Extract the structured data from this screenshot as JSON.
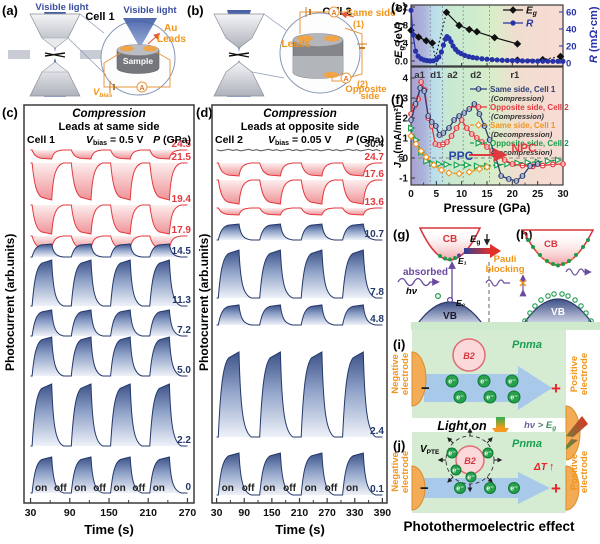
{
  "colors": {
    "red": "#e2393f",
    "blue": "#24386b",
    "orange": "#f0941c",
    "green": "#15a04c",
    "navy": "#2741a6",
    "purple": "#6a4a9e",
    "zone_purple": "#a8a0d0",
    "zone_blue": "#badcec",
    "zone_green": "#cfeccc",
    "zone_pink": "#f8dcd4",
    "electrode_orange": "#f3ab55",
    "arrow_blue": "#a8c9e9",
    "bg_green": "#d5ecd3",
    "b2_pink": "#fbd9da"
  },
  "panels": {
    "a": {
      "label": "(a)",
      "light1": "Visible light",
      "light2": "Visible light",
      "cell": "Cell 1",
      "au1": "Au",
      "au2": "Leads",
      "sample": "Sample",
      "v": "V",
      "vsub": "bias"
    },
    "b": {
      "label": "(b)",
      "cell": "Cell 2",
      "leads": "Leads",
      "same1": "Same side",
      "same_num": "(1)",
      "opp1": "Opposite",
      "opp2": "side",
      "opp_num": "(2)"
    },
    "g": {
      "label": "(g)",
      "cb": "CB",
      "vb": "VB",
      "absorbed": "absorbed",
      "hv": "hν",
      "e1": "E₁",
      "e0": "E₀"
    },
    "gh_mid": {
      "eg": "E",
      "egsub": "g"
    },
    "h": {
      "label": "(h)",
      "cb": "CB",
      "vb": "VB",
      "pauli1": "Pauli",
      "pauli2": "blocking"
    },
    "i": {
      "label": "(i)",
      "pnma": "Pnma",
      "b2": "B2",
      "minus": "−",
      "plus": "+",
      "electron": "e⁻",
      "neg1": "Negative",
      "neg2": "electrode",
      "pos1": "Positive",
      "pos2": "electrode"
    },
    "light": {
      "lighton": "Light on",
      "hv": "hν > E",
      "hvsub": "g"
    },
    "j": {
      "label": "(j)",
      "v": "V",
      "vsub": "PTE",
      "pnma": "Pnma",
      "b2": "B2",
      "dt": "ΔT",
      "up": "↑",
      "minus": "−",
      "plus": "+",
      "electron": "e⁻",
      "neg1": "Negative",
      "neg2": "electrode",
      "pos1": "Positive",
      "pos2": "electrode"
    },
    "caption": "Photothermoelectric effect"
  },
  "chart_data": [
    {
      "id": "c",
      "type": "pulse-train",
      "panel_label": "(c)",
      "title": "Compression",
      "subtitle": "Leads at same side",
      "cell": "Cell 1",
      "vbias_base": "V",
      "vbias_sub": "bias",
      "vbias_rest": " = 0.5 V",
      "pressure_header_i": "P",
      "pressure_header_rest": " (GPa)",
      "ylabel": "Photocurrent (arb.units)",
      "xlabel": "Time (s)",
      "xticks": [
        30,
        90,
        150,
        210,
        270
      ],
      "xminor": [
        60,
        120,
        180,
        240
      ],
      "onoff": [
        "on",
        "off",
        "on",
        "off",
        "on",
        "off",
        "on"
      ],
      "traces": [
        {
          "pressure": "24.5",
          "color": "red",
          "baseline": 150,
          "amp": 9
        },
        {
          "pressure": "21.5",
          "color": "red",
          "baseline": 163,
          "amp": 37
        },
        {
          "pressure": "19.4",
          "color": "red",
          "baseline": 205,
          "amp": 29
        },
        {
          "pressure": "17.9",
          "color": "red",
          "baseline": 236,
          "amp": 13
        },
        {
          "pressure": "14.5",
          "color": "blue",
          "baseline": 257,
          "amp": 13
        },
        {
          "pressure": "11.3",
          "color": "blue",
          "baseline": 306,
          "amp": 46
        },
        {
          "pressure": "7.2",
          "color": "blue",
          "baseline": 336,
          "amp": 26
        },
        {
          "pressure": "5.0",
          "color": "blue",
          "baseline": 376,
          "amp": 39
        },
        {
          "pressure": "2.2",
          "color": "blue",
          "baseline": 446,
          "amp": 62
        },
        {
          "pressure": "0",
          "color": "blue",
          "baseline": 493,
          "amp": 36
        }
      ]
    },
    {
      "id": "d",
      "type": "pulse-train",
      "panel_label": "(d)",
      "title": "Compression",
      "subtitle": "Leads at opposite side",
      "cell": "Cell 2",
      "vbias_base": "V",
      "vbias_sub": "bias",
      "vbias_rest": " = 0.05 V",
      "pressure_header_i": "P",
      "pressure_header_rest": " (GPa)",
      "ylabel": "Photocurrent (arb.units)",
      "xlabel": "Time (s)",
      "xticks": [
        30,
        90,
        150,
        210,
        270,
        330,
        390
      ],
      "xminor": [
        60,
        120,
        180,
        240,
        300,
        360
      ],
      "onoff": [
        "on",
        "off",
        "on",
        "off",
        "on",
        "off",
        "on"
      ],
      "traces": [
        {
          "pressure": "30.4",
          "color": "dark",
          "baseline": 150,
          "amp": 2
        },
        {
          "pressure": "24.7",
          "color": "red",
          "baseline": 163,
          "amp": 13
        },
        {
          "pressure": "17.6",
          "color": "red",
          "baseline": 180,
          "amp": 24
        },
        {
          "pressure": "13.6",
          "color": "red",
          "baseline": 208,
          "amp": 7
        },
        {
          "pressure": "10.7",
          "color": "blue",
          "baseline": 240,
          "amp": 16
        },
        {
          "pressure": "7.8",
          "color": "blue",
          "baseline": 298,
          "amp": 48
        },
        {
          "pressure": "4.8",
          "color": "blue",
          "baseline": 325,
          "amp": 20
        },
        {
          "pressure": "2.4",
          "color": "blue",
          "baseline": 437,
          "amp": 85
        },
        {
          "pressure": "0.1",
          "color": "blue",
          "baseline": 495,
          "amp": 42
        }
      ]
    },
    {
      "id": "e",
      "type": "line",
      "panel_label": "(e)",
      "xlim": [
        0,
        30
      ],
      "left_axis": {
        "label_base": "E",
        "label_sub": "g",
        "label_rest": " (eV)",
        "ticks": [
          "0.0",
          "0.4",
          "0.8",
          "1.2"
        ],
        "tick_vals": [
          0,
          0.4,
          0.8,
          1.2
        ],
        "lim": [
          -0.11,
          1.25
        ]
      },
      "right_axis": {
        "label_italic": "R",
        "label_rest": " (mΩ·cm)",
        "ticks": [
          "0",
          "20",
          "40",
          "60"
        ],
        "tick_vals": [
          0,
          20,
          40,
          60
        ],
        "lim": [
          0,
          66
        ]
      },
      "legend": [
        {
          "base": "E",
          "sub": "g",
          "color": "#111111",
          "marker": "diamond"
        },
        {
          "base": "R",
          "sub": "",
          "color": "#2733a8",
          "marker": "circle"
        }
      ],
      "series": [
        {
          "name": "Eg",
          "axis": "left",
          "marker": "diamond",
          "color": "#111111",
          "style": "solid",
          "points": [
            [
              0,
              0.68
            ],
            [
              1.5,
              0.53
            ],
            [
              3,
              0.45
            ],
            [
              4.2,
              0.4
            ]
          ]
        },
        {
          "name": "Eg-transition",
          "axis": "left",
          "marker": "none",
          "color": "#111111",
          "style": "dotted",
          "points": [
            [
              4.2,
              0.4
            ],
            [
              4.8,
              0.06
            ],
            [
              7,
              1.08
            ]
          ]
        },
        {
          "name": "Eg-high",
          "axis": "left",
          "marker": "diamond",
          "color": "#111111",
          "style": "solid",
          "points": [
            [
              7,
              1.08
            ],
            [
              9.5,
              0.79
            ],
            [
              11.5,
              0.7
            ],
            [
              13,
              0.65
            ],
            [
              16.5,
              0.52
            ],
            [
              21,
              0.38
            ]
          ]
        },
        {
          "name": "Eg-metallic",
          "axis": "left",
          "marker": "diamond",
          "color": "#111111",
          "style": "dotted",
          "points": [
            [
              21,
              0.02
            ],
            [
              26,
              0.03
            ],
            [
              29.5,
              0.1
            ]
          ]
        },
        {
          "name": "R",
          "axis": "right",
          "marker": "circle",
          "color": "#2733a8",
          "style": "solid",
          "points": [
            [
              0,
              62
            ],
            [
              0.4,
              33
            ],
            [
              0.9,
              14
            ],
            [
              1.4,
              8
            ],
            [
              2,
              5
            ],
            [
              2.6,
              3.5
            ],
            [
              3.2,
              2.8
            ],
            [
              3.8,
              2.4
            ],
            [
              4.4,
              2.6
            ],
            [
              5,
              4
            ],
            [
              5.5,
              7
            ],
            [
              6,
              13
            ],
            [
              6.4,
              21
            ],
            [
              6.8,
              28
            ],
            [
              7.1,
              31
            ],
            [
              7.5,
              29
            ],
            [
              7.9,
              25
            ],
            [
              8.3,
              20
            ],
            [
              8.8,
              16
            ],
            [
              9.3,
              13
            ],
            [
              9.9,
              11
            ],
            [
              10.6,
              9
            ],
            [
              11.4,
              7.5
            ],
            [
              12.2,
              6.5
            ],
            [
              13,
              5.8
            ],
            [
              14,
              5
            ],
            [
              15,
              4.5
            ],
            [
              16,
              4
            ],
            [
              17,
              3.6
            ],
            [
              18,
              3.2
            ],
            [
              19,
              3
            ],
            [
              20,
              2.8
            ],
            [
              21,
              2.6
            ],
            [
              22,
              2.5
            ],
            [
              23,
              2.4
            ],
            [
              24,
              2.3
            ],
            [
              25,
              2.2
            ],
            [
              26,
              2.1
            ],
            [
              27,
              2.1
            ],
            [
              28,
              2
            ],
            [
              29,
              2
            ],
            [
              30,
              2
            ]
          ]
        }
      ]
    },
    {
      "id": "f",
      "type": "line",
      "panel_label": "(f)",
      "ylabel_base": "J",
      "ylabel_sub": "ph",
      "ylabel_rest": "(mA/mm²)",
      "yticks": [
        -1,
        0,
        1,
        2,
        3,
        4
      ],
      "ylim": [
        -1.35,
        4.55
      ],
      "xticks": [
        0,
        5,
        10,
        15,
        20,
        25,
        30
      ],
      "xlim": [
        0,
        30
      ],
      "xlabel": "Pressure (GPa)",
      "phases": [
        {
          "label": "a1",
          "x": 1.7
        },
        {
          "label": "d1",
          "x": 4.9
        },
        {
          "label": "a2",
          "x": 8.2
        },
        {
          "label": "d2",
          "x": 12.8
        },
        {
          "label": "r1",
          "x": 20.5
        }
      ],
      "boundaries": [
        3.8,
        6.2,
        10.3,
        15.5
      ],
      "ppc": "PPC",
      "npc": "NPC",
      "series": [
        {
          "name": "Opposite side, Cell 2",
          "phase": "(Decompression)",
          "color": "#15a04c",
          "marker": "triangle",
          "style": "dashed",
          "points": [
            [
              0,
              1.5
            ],
            [
              1,
              0.9
            ],
            [
              2,
              0.3
            ],
            [
              3,
              -0.15
            ],
            [
              4.2,
              -0.28
            ],
            [
              5.5,
              -0.3
            ],
            [
              7,
              -0.32
            ],
            [
              9,
              -0.35
            ],
            [
              11,
              -0.35
            ],
            [
              13,
              -0.4
            ],
            [
              15,
              -0.4
            ],
            [
              17,
              -0.35
            ],
            [
              19,
              -0.3
            ],
            [
              21,
              -0.25
            ],
            [
              23,
              -0.22
            ],
            [
              25,
              -0.2
            ],
            [
              27,
              -0.15
            ],
            [
              29,
              -0.1
            ]
          ]
        },
        {
          "name": "Same side, Cell 1",
          "phase": "(Decompression)",
          "color": "#f0941c",
          "marker": "diamond",
          "style": "dashed",
          "points": [
            [
              0,
              1.1
            ],
            [
              1,
              0.7
            ],
            [
              2,
              0.35
            ],
            [
              3,
              0.05
            ],
            [
              4.5,
              -0.35
            ],
            [
              6,
              -0.6
            ],
            [
              7.5,
              -0.75
            ],
            [
              9.5,
              -0.78
            ],
            [
              11.5,
              -0.7
            ],
            [
              13.5,
              -0.55
            ],
            [
              15,
              -0.45
            ]
          ]
        },
        {
          "name": "Opposite side, Cell 2",
          "phase": "(Compression)",
          "color": "#e2393f",
          "marker": "circle",
          "style": "solid",
          "points": [
            [
              0,
              2.2
            ],
            [
              0.7,
              2.6
            ],
            [
              1.4,
              2.95
            ],
            [
              2,
              3.8
            ],
            [
              2.7,
              3.4
            ],
            [
              3.4,
              2.0
            ],
            [
              4.1,
              1.6
            ],
            [
              4.8,
              0.7
            ],
            [
              5.6,
              0.65
            ],
            [
              6.3,
              0.68
            ],
            [
              7.1,
              0.8
            ],
            [
              8,
              1.1
            ],
            [
              9,
              1.5
            ],
            [
              10,
              1.9
            ],
            [
              11,
              1.5
            ],
            [
              12,
              1.2
            ],
            [
              13,
              1.0
            ],
            [
              14,
              0.8
            ],
            [
              15,
              0.55
            ],
            [
              16,
              0.35
            ],
            [
              17,
              0.15
            ],
            [
              18.5,
              -0.1
            ],
            [
              20,
              -0.3
            ],
            [
              22,
              -0.38
            ],
            [
              24,
              -0.42
            ],
            [
              26,
              -0.38
            ],
            [
              28,
              -0.32
            ],
            [
              30,
              -0.3
            ]
          ]
        },
        {
          "name": "Same side, Cell 1",
          "phase": "(Compression)",
          "color": "#2c3f75",
          "marker": "circle",
          "style": "solid",
          "points": [
            [
              0,
              1.9
            ],
            [
              0.9,
              2.7
            ],
            [
              1.8,
              3.5
            ],
            [
              2.6,
              3.35
            ],
            [
              3.4,
              2.1
            ],
            [
              4.1,
              1.8
            ],
            [
              4.9,
              1.6
            ],
            [
              5.6,
              1.15
            ],
            [
              6.4,
              1.25
            ],
            [
              7.5,
              1.5
            ],
            [
              8.5,
              1.9
            ],
            [
              9.5,
              2.1
            ],
            [
              10.5,
              2.25
            ],
            [
              11.5,
              2.45
            ],
            [
              12.5,
              2.7
            ],
            [
              13.5,
              2.2
            ],
            [
              14.5,
              1.6
            ],
            [
              15.5,
              0.9
            ],
            [
              16.6,
              0.15
            ],
            [
              17.8,
              -0.9
            ],
            [
              19.3,
              -1.05
            ],
            [
              20.8,
              -1.15
            ],
            [
              22,
              -0.9
            ],
            [
              23.5,
              -0.4
            ],
            [
              25,
              -0.3
            ]
          ]
        }
      ],
      "legend_order": [
        3,
        2,
        1,
        0
      ]
    }
  ]
}
